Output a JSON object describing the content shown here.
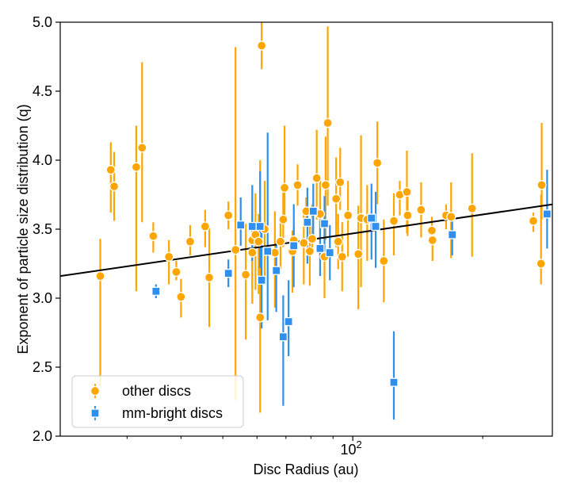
{
  "chart_data": {
    "type": "scatter",
    "title": "",
    "xlabel": "Disc Radius (au)",
    "ylabel": "Exponent of particle size distribution (q)",
    "xscale": "log",
    "xlim": [
      21,
      290
    ],
    "ylim": [
      2.0,
      5.0
    ],
    "yticks": [
      "2.0",
      "2.5",
      "3.0",
      "3.5",
      "4.0",
      "4.5",
      "5.0"
    ],
    "xtick_label": {
      "base": "10",
      "exp": "2"
    },
    "legend_location": "lower-left",
    "fit_line": {
      "points": [
        [
          21,
          3.16
        ],
        [
          290,
          3.68
        ]
      ],
      "color": "#000000"
    },
    "series": [
      {
        "name": "other discs",
        "color": "#FFA500",
        "marker": "circle",
        "points": [
          [
            26,
            3.16,
            0.8,
            0.27
          ],
          [
            27.5,
            3.93,
            0.31,
            0.2
          ],
          [
            28,
            3.81,
            0.25,
            0.25
          ],
          [
            31.5,
            3.95,
            0.9,
            0.3
          ],
          [
            32.5,
            4.09,
            0.54,
            0.62
          ],
          [
            34.5,
            3.45,
            0.12,
            0.1
          ],
          [
            37.5,
            3.3,
            0.2,
            0.12
          ],
          [
            39,
            3.19,
            0.06,
            0.08
          ],
          [
            40,
            3.01,
            0.15,
            0.13
          ],
          [
            42,
            3.41,
            0.1,
            0.12
          ],
          [
            45.5,
            3.52,
            0.15,
            0.12
          ],
          [
            46.5,
            3.15,
            0.36,
            0.36
          ],
          [
            51.5,
            3.6,
            0.1,
            0.1
          ],
          [
            53.5,
            3.35,
            1.09,
            1.47
          ],
          [
            56.5,
            3.17,
            0.47,
            0.37
          ],
          [
            58.5,
            3.42,
            0.35,
            0.3
          ],
          [
            58.5,
            3.33,
            0.37,
            0.28
          ],
          [
            59.5,
            3.46,
            0.4,
            0.3
          ],
          [
            60.5,
            3.41,
            0.38,
            0.2
          ],
          [
            61,
            2.86,
            0.69,
            1.14
          ],
          [
            61.5,
            4.83,
            0.17,
            0.25
          ],
          [
            62.5,
            3.5,
            0.4,
            0.35
          ],
          [
            66,
            3.33,
            0.4,
            0.3
          ],
          [
            68,
            3.41,
            0.2,
            0.15
          ],
          [
            69,
            3.57,
            0.2,
            0.2
          ],
          [
            69.5,
            3.8,
            0.2,
            0.45
          ],
          [
            72.5,
            3.34,
            0.3,
            0.15
          ],
          [
            73,
            3.42,
            0.1,
            0.1
          ],
          [
            74.5,
            3.82,
            0.15,
            0.15
          ],
          [
            77,
            3.4,
            0.3,
            0.25
          ],
          [
            78,
            3.63,
            0.1,
            0.1
          ],
          [
            79.5,
            3.34,
            0.25,
            0.2
          ],
          [
            80.5,
            3.43,
            0.1,
            0.25
          ],
          [
            82.5,
            3.87,
            0.3,
            0.35
          ],
          [
            84,
            3.61,
            0.3,
            0.25
          ],
          [
            86,
            3.3,
            0.3,
            0.3
          ],
          [
            86.5,
            3.82,
            0.4,
            0.35
          ],
          [
            87.5,
            4.27,
            0.6,
            0.7
          ],
          [
            91.5,
            3.72,
            0.35,
            0.3
          ],
          [
            92.5,
            3.41,
            0.2,
            0.2
          ],
          [
            93.5,
            3.84,
            0.2,
            0.25
          ],
          [
            94.5,
            3.3,
            0.25,
            0.25
          ],
          [
            97.5,
            3.6,
            0.3,
            0.25
          ],
          [
            103,
            3.32,
            0.4,
            0.35
          ],
          [
            104.5,
            3.58,
            0.5,
            0.6
          ],
          [
            108,
            3.57,
            0.3,
            0.25
          ],
          [
            114,
            3.98,
            0.3,
            0.3
          ],
          [
            118,
            3.27,
            0.3,
            0.3
          ],
          [
            124.5,
            3.56,
            0.25,
            0.2
          ],
          [
            128.5,
            3.75,
            0.15,
            0.1
          ],
          [
            133.5,
            3.77,
            0.3,
            0.3
          ],
          [
            134,
            3.6,
            0.15,
            0.15
          ],
          [
            144,
            3.64,
            0.2,
            0.2
          ],
          [
            152.5,
            3.49,
            0.1,
            0.1
          ],
          [
            153,
            3.42,
            0.15,
            0.1
          ],
          [
            164.5,
            3.6,
            0.1,
            0.08
          ],
          [
            169,
            3.59,
            0.3,
            0.25
          ],
          [
            189,
            3.65,
            0.35,
            0.4
          ],
          [
            262,
            3.56,
            0.08,
            0.06
          ],
          [
            273,
            3.25,
            0.15,
            0.5
          ],
          [
            274,
            3.82,
            0.25,
            0.45
          ]
        ]
      },
      {
        "name": "mm-bright discs",
        "color": "#2E8FEF",
        "marker": "square",
        "points": [
          [
            35,
            3.05,
            0.05,
            0.05
          ],
          [
            51.5,
            3.18,
            0.1,
            0.1
          ],
          [
            55,
            3.53,
            0.15,
            0.2
          ],
          [
            58.5,
            3.52,
            0.25,
            0.3
          ],
          [
            61,
            3.52,
            0.3,
            0.4
          ],
          [
            61.5,
            3.13,
            0.35,
            0.4
          ],
          [
            63.5,
            3.34,
            0.5,
            0.86
          ],
          [
            66.5,
            3.2,
            0.3,
            0.2
          ],
          [
            69,
            2.72,
            0.5,
            0.3
          ],
          [
            71,
            2.83,
            0.25,
            0.3
          ],
          [
            73,
            3.38,
            0.3,
            0.3
          ],
          [
            78.5,
            3.55,
            0.3,
            0.25
          ],
          [
            81,
            3.63,
            0.2,
            0.2
          ],
          [
            84,
            3.36,
            0.2,
            0.2
          ],
          [
            86,
            3.54,
            0.2,
            0.2
          ],
          [
            88.5,
            3.33,
            0.2,
            0.2
          ],
          [
            110.5,
            3.58,
            0.3,
            0.25
          ],
          [
            113,
            3.52,
            0.3,
            0.25
          ],
          [
            124.5,
            2.39,
            0.27,
            0.37
          ],
          [
            170,
            3.46,
            0.15,
            0.15
          ],
          [
            282,
            3.61,
            0.25,
            0.32
          ]
        ]
      }
    ]
  }
}
